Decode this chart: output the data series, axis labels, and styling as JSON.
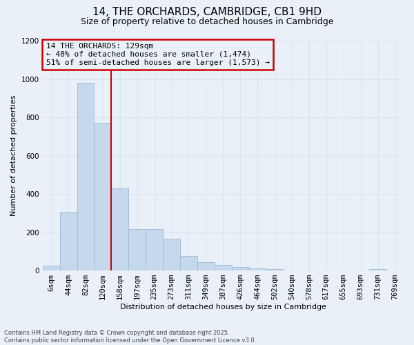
{
  "title": "14, THE ORCHARDS, CAMBRIDGE, CB1 9HD",
  "subtitle": "Size of property relative to detached houses in Cambridge",
  "xlabel": "Distribution of detached houses by size in Cambridge",
  "ylabel": "Number of detached properties",
  "categories": [
    "6sqm",
    "44sqm",
    "82sqm",
    "120sqm",
    "158sqm",
    "197sqm",
    "235sqm",
    "273sqm",
    "311sqm",
    "349sqm",
    "387sqm",
    "426sqm",
    "464sqm",
    "502sqm",
    "540sqm",
    "578sqm",
    "617sqm",
    "655sqm",
    "693sqm",
    "731sqm",
    "769sqm"
  ],
  "values": [
    25,
    305,
    980,
    770,
    430,
    215,
    215,
    165,
    75,
    45,
    30,
    18,
    10,
    8,
    0,
    0,
    0,
    0,
    0,
    8,
    0
  ],
  "bar_color": "#c5d8ec",
  "bar_edge_color": "#9bbbd8",
  "vline_color": "#cc0000",
  "vline_index": 3,
  "annotation_text": "14 THE ORCHARDS: 129sqm\n← 48% of detached houses are smaller (1,474)\n51% of semi-detached houses are larger (1,573) →",
  "annotation_box_edge_color": "#cc0000",
  "ylim": [
    0,
    1200
  ],
  "yticks": [
    0,
    200,
    400,
    600,
    800,
    1000,
    1200
  ],
  "background_color": "#eaf0f8",
  "grid_color": "#d8e4f0",
  "footnote": "Contains HM Land Registry data © Crown copyright and database right 2025.\nContains public sector information licensed under the Open Government Licence v3.0.",
  "title_fontsize": 11,
  "subtitle_fontsize": 9,
  "annotation_fontsize": 8,
  "xlabel_fontsize": 8,
  "ylabel_fontsize": 8,
  "tick_fontsize": 7.5
}
